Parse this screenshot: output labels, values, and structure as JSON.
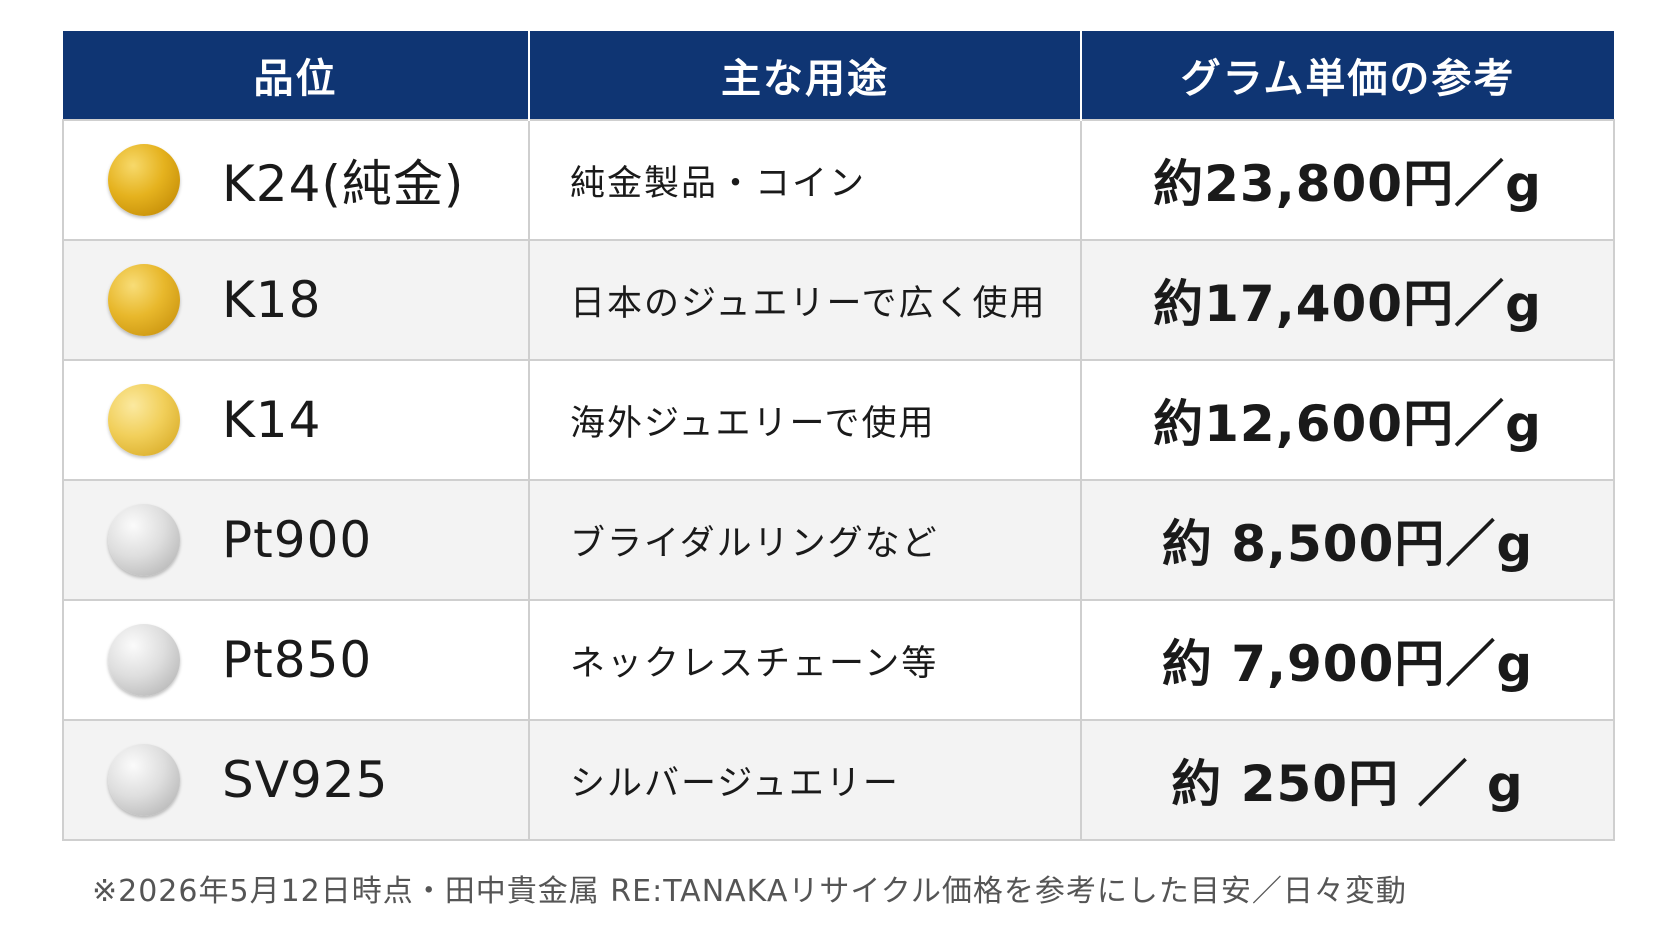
{
  "table": {
    "headers": [
      "品位",
      "主な用途",
      "グラム単価の参考"
    ],
    "rows": [
      {
        "grade": "K24(純金)",
        "coin": "gold-coin-icon",
        "use": "純金製品・コイン",
        "price": "約23,800円／g"
      },
      {
        "grade": "K18",
        "coin": "gold-coin-icon",
        "use": "日本のジュエリーで広く使用",
        "price": "約17,400円／g"
      },
      {
        "grade": "K14",
        "coin": "light-gold-coin-icon",
        "use": "海外ジュエリーで使用",
        "price": "約12,600円／g"
      },
      {
        "grade": "Pt900",
        "coin": "silver-coin-icon",
        "use": "ブライダルリングなど",
        "price": "約 8,500円／g"
      },
      {
        "grade": "Pt850",
        "coin": "silver-coin-icon",
        "use": "ネックレスチェーン等",
        "price": "約 7,900円／g"
      },
      {
        "grade": "SV925",
        "coin": "silver-coin-icon",
        "use": "シルバージュエリー",
        "price": "約 250円 ／ g"
      }
    ]
  },
  "colors": {
    "header_bg": "#0f3573",
    "header_text": "#ffffff",
    "row_alt_bg": "#f3f3f3",
    "border": "#cfcfcf"
  },
  "footnote": "※2026年5月12日時点・田中貴金属 RE:TANAKAリサイクル価格を参考にした目安／日々変動"
}
